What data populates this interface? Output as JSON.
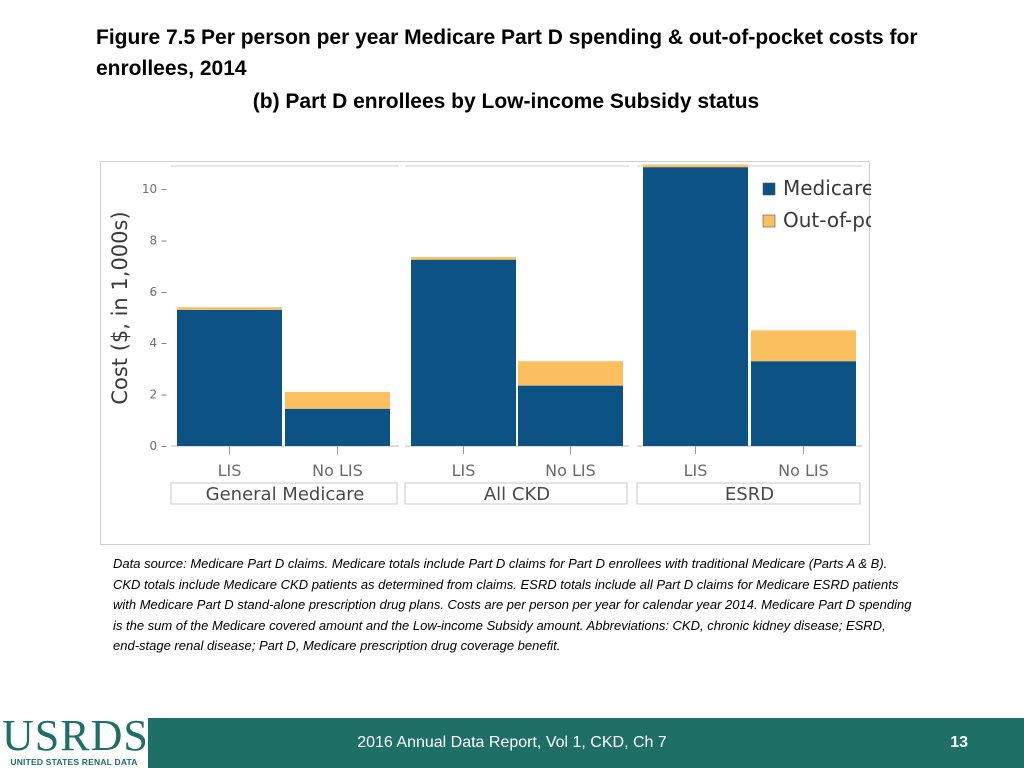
{
  "slide": {
    "title": "Figure 7.5 Per person per year Medicare Part D spending & out-of-pocket costs for enrollees, 2014",
    "subtitle": "(b) Part D enrollees by Low-income Subsidy status",
    "note": "Data source: Medicare Part D claims. Medicare totals include Part D claims for Part D enrollees with traditional Medicare (Parts A & B). CKD totals include Medicare CKD patients as determined from claims. ESRD totals include all Part D claims for Medicare ESRD patients with Medicare Part D stand-alone prescription drug plans. Costs are per person per year for calendar year 2014. Medicare Part D spending is the sum of the Medicare covered amount and the Low-income Subsidy amount. Abbreviations: CKD, chronic kidney disease; ESRD, end-stage renal disease; Part D, Medicare prescription drug coverage benefit."
  },
  "footer": {
    "logo": "USRDS",
    "logo_sub": "UNITED STATES RENAL DATA SYSTEM",
    "center": "2016 Annual Data Report, Vol 1, CKD, Ch 7",
    "page": "13",
    "color": "#1e6f66"
  },
  "chart_data": {
    "type": "bar",
    "stacked": true,
    "ylabel": "Cost ($, in 1,000s)",
    "ylim": [
      0,
      11
    ],
    "yticks": [
      0,
      2,
      4,
      6,
      8,
      10
    ],
    "tick_labels": [
      "0 –",
      "2 –",
      "4 –",
      "6 –",
      "8 –",
      "10 –"
    ],
    "legend_position": "top-right",
    "groups": [
      {
        "label": "General Medicare",
        "categories": [
          "LIS",
          "No LIS"
        ]
      },
      {
        "label": "All CKD",
        "categories": [
          "LIS",
          "No LIS"
        ]
      },
      {
        "label": "ESRD",
        "categories": [
          "LIS",
          "No LIS"
        ]
      }
    ],
    "series": [
      {
        "name": "Medicare",
        "color": "#0d5285",
        "values": [
          5.3,
          1.45,
          7.25,
          2.35,
          10.85,
          3.3
        ]
      },
      {
        "name": "Out-of-pocket",
        "color": "#fbbf60",
        "values": [
          0.1,
          0.65,
          0.1,
          0.95,
          0.1,
          1.2
        ]
      }
    ]
  }
}
